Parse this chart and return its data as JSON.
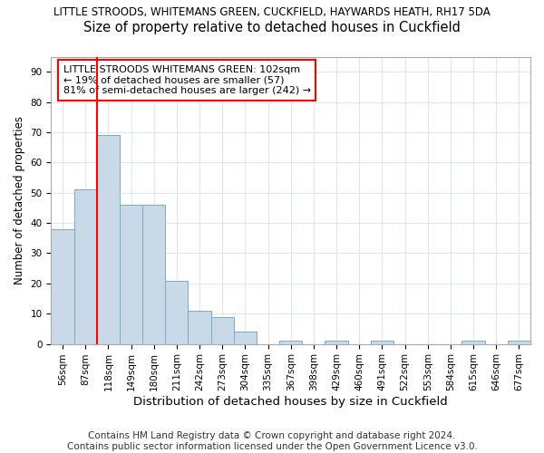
{
  "title": "LITTLE STROODS, WHITEMANS GREEN, CUCKFIELD, HAYWARDS HEATH, RH17 5DA",
  "subtitle": "Size of property relative to detached houses in Cuckfield",
  "xlabel": "Distribution of detached houses by size in Cuckfield",
  "ylabel": "Number of detached properties",
  "categories": [
    "56sqm",
    "87sqm",
    "118sqm",
    "149sqm",
    "180sqm",
    "211sqm",
    "242sqm",
    "273sqm",
    "304sqm",
    "335sqm",
    "367sqm",
    "398sqm",
    "429sqm",
    "460sqm",
    "491sqm",
    "522sqm",
    "553sqm",
    "584sqm",
    "615sqm",
    "646sqm",
    "677sqm"
  ],
  "values": [
    38,
    51,
    69,
    46,
    46,
    21,
    11,
    9,
    4,
    0,
    1,
    0,
    1,
    0,
    1,
    0,
    0,
    0,
    1,
    0,
    1
  ],
  "bar_color": "#c9d9e8",
  "bar_edge_color": "#7aaac8",
  "red_line_x": 1.5,
  "annotation_line1": "LITTLE STROODS WHITEMANS GREEN: 102sqm",
  "annotation_line2": "← 19% of detached houses are smaller (57)",
  "annotation_line3": "81% of semi-detached houses are larger (242) →",
  "annotation_box_color": "white",
  "annotation_border_color": "red",
  "ylim": [
    0,
    95
  ],
  "yticks": [
    0,
    10,
    20,
    30,
    40,
    50,
    60,
    70,
    80,
    90
  ],
  "grid_color": "#dce6f0",
  "footer": "Contains HM Land Registry data © Crown copyright and database right 2024.\nContains public sector information licensed under the Open Government Licence v3.0.",
  "title_fontsize": 8.5,
  "subtitle_fontsize": 10.5,
  "xlabel_fontsize": 9.5,
  "ylabel_fontsize": 8.5,
  "tick_fontsize": 7.5,
  "footer_fontsize": 7.5,
  "annot_fontsize": 8.0
}
